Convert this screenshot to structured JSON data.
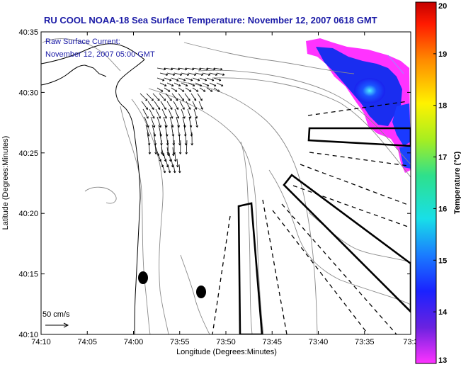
{
  "title": "RU COOL  NOAA-18  Sea Surface Temperature:  November 12, 2007 0618 GMT",
  "overlay": {
    "line1": "Raw Surface Current:",
    "line2": "November 12, 2007 05:00 GMT"
  },
  "axes": {
    "xlabel": "Longitude (Degrees:Minutes)",
    "ylabel": "Latitude (Degrees:Minutes)",
    "xticks": [
      "74:10",
      "74:05",
      "74:00",
      "73:55",
      "73:50",
      "73:45",
      "73:40",
      "73:35",
      "73:3"
    ],
    "yticks": [
      "40:35",
      "40:30",
      "40:25",
      "40:20",
      "40:15",
      "40:10"
    ]
  },
  "scale_vector": {
    "label": "50 cm/s"
  },
  "colorbar": {
    "label": "Temperature (°C)",
    "ticks": [
      "20",
      "19",
      "18",
      "17",
      "16",
      "15",
      "14",
      "13"
    ],
    "min": 13,
    "max": 20
  },
  "colors": {
    "title": "#1a1aa6",
    "sst_warm_patch": "#ff33ff",
    "sst_cool_patch": "#1e3cff"
  }
}
